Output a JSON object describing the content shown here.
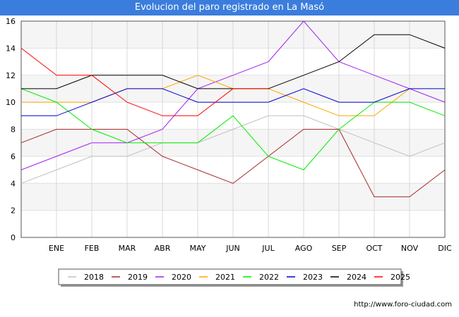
{
  "chart_data": {
    "type": "line",
    "title": "Evolucion del paro registrado en La Masó",
    "categories": [
      "",
      "ENE",
      "FEB",
      "MAR",
      "ABR",
      "MAY",
      "JUN",
      "JUL",
      "AGO",
      "SEP",
      "OCT",
      "NOV",
      "DIC"
    ],
    "ylim": [
      0,
      16
    ],
    "yticks": [
      0,
      2,
      4,
      6,
      8,
      10,
      12,
      14,
      16
    ],
    "grid": true,
    "legend_position": "bottom",
    "series": [
      {
        "name": "2018",
        "color": "#c0c0c0",
        "values": [
          4,
          5,
          6,
          6,
          7,
          7,
          8,
          9,
          9,
          8,
          7,
          6,
          7
        ]
      },
      {
        "name": "2019",
        "color": "#a52a2a",
        "values": [
          7,
          8,
          8,
          8,
          6,
          5,
          4,
          6,
          8,
          8,
          3,
          3,
          5
        ]
      },
      {
        "name": "2020",
        "color": "#a020f0",
        "values": [
          5,
          6,
          7,
          7,
          8,
          11,
          12,
          13,
          16,
          13,
          12,
          11,
          10
        ]
      },
      {
        "name": "2021",
        "color": "#ffa500",
        "values": [
          10,
          10,
          10,
          11,
          11,
          12,
          11,
          11,
          10,
          9,
          9,
          11,
          null
        ]
      },
      {
        "name": "2022",
        "color": "#00ee00",
        "values": [
          11,
          10,
          8,
          7,
          7,
          7,
          9,
          6,
          5,
          8,
          10,
          10,
          9
        ]
      },
      {
        "name": "2023",
        "color": "#0000cd",
        "values": [
          9,
          9,
          10,
          11,
          11,
          10,
          10,
          10,
          11,
          10,
          10,
          11,
          11
        ]
      },
      {
        "name": "2024",
        "color": "#000000",
        "values": [
          11,
          11,
          12,
          12,
          12,
          11,
          11,
          11,
          12,
          13,
          15,
          15,
          14
        ]
      },
      {
        "name": "2025",
        "color": "#ff0000",
        "values": [
          14,
          12,
          12,
          10,
          9,
          9,
          11,
          11,
          null,
          null,
          null,
          null,
          null
        ]
      }
    ]
  },
  "footer": {
    "url": "http://www.foro-ciudad.com"
  }
}
